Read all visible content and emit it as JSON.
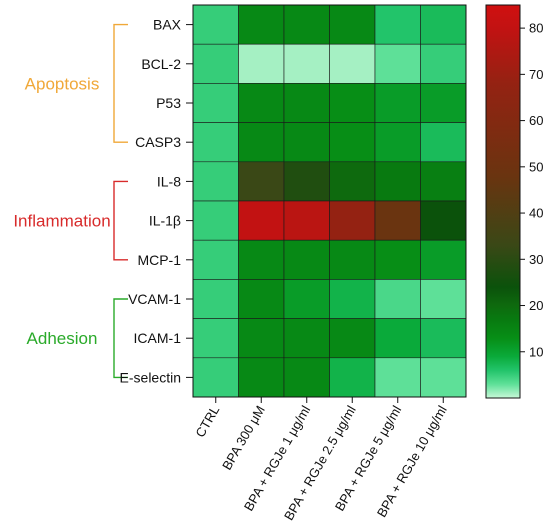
{
  "chart_data": {
    "type": "heatmap",
    "rows": [
      "BAX",
      "BCL-2",
      "P53",
      "CASP3",
      "IL-8",
      "IL-1β",
      "MCP-1",
      "VCAM-1",
      "ICAM-1",
      "E-selectin"
    ],
    "columns": [
      "CTRL",
      "BPA 300 μM",
      "BPA + RGJe 1 μg/ml",
      "BPA + RGJe 2.5 μg/ml",
      "BPA + RGJe 5 μg/ml",
      "BPA + RGJe 10 μg/ml"
    ],
    "values": [
      [
        5,
        14,
        14,
        14,
        6,
        7
      ],
      [
        5,
        1,
        1,
        1,
        3,
        5
      ],
      [
        5,
        14,
        14,
        13,
        11,
        11
      ],
      [
        5,
        14,
        14,
        13,
        11,
        7
      ],
      [
        5,
        33,
        28,
        20,
        17,
        16
      ],
      [
        5,
        80,
        78,
        68,
        48,
        24
      ],
      [
        5,
        14,
        14,
        14,
        13,
        11
      ],
      [
        5,
        14,
        11,
        8,
        4,
        3
      ],
      [
        5,
        14,
        14,
        14,
        9,
        7
      ],
      [
        5,
        14,
        14,
        8,
        3,
        3
      ]
    ],
    "groups": [
      {
        "name": "Apoptosis",
        "color": "#f0a838",
        "rows": [
          "BAX",
          "BCL-2",
          "P53",
          "CASP3"
        ]
      },
      {
        "name": "Inflammation",
        "color": "#d82b2b",
        "rows": [
          "IL-8",
          "IL-1β",
          "MCP-1"
        ]
      },
      {
        "name": "Adhesion",
        "color": "#2aaa2a",
        "rows": [
          "VCAM-1",
          "ICAM-1",
          "E-selectin"
        ]
      }
    ],
    "colorbar": {
      "ticks": [
        10,
        20,
        30,
        40,
        50,
        60,
        70,
        80
      ],
      "range": [
        0,
        85
      ]
    },
    "colorscale": [
      [
        0,
        "#c8f8d8"
      ],
      [
        3,
        "#5ee098"
      ],
      [
        6,
        "#22c46a"
      ],
      [
        9,
        "#0aaa3a"
      ],
      [
        13,
        "#078e16"
      ],
      [
        17,
        "#087a10"
      ],
      [
        20,
        "#0e6a0e"
      ],
      [
        24,
        "#0b520b"
      ],
      [
        33,
        "#3a4816"
      ],
      [
        48,
        "#6a3410"
      ],
      [
        68,
        "#942212"
      ],
      [
        80,
        "#c21212"
      ],
      [
        85,
        "#d01010"
      ]
    ]
  }
}
